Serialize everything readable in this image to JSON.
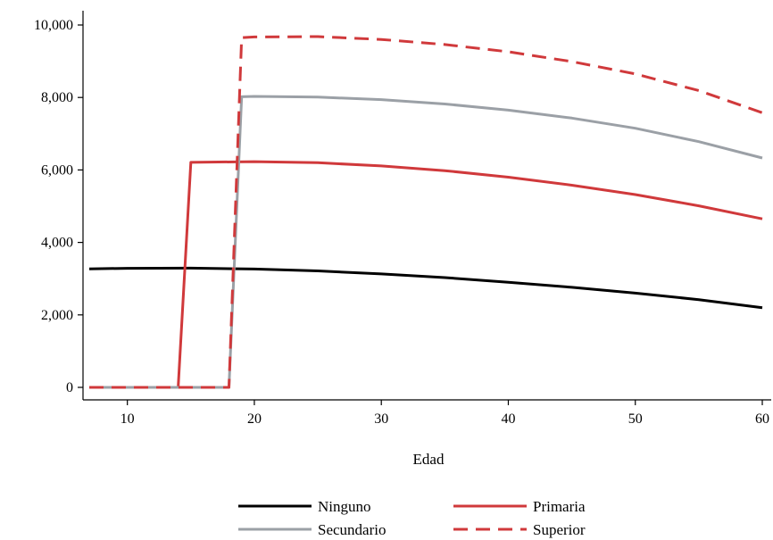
{
  "chart_data": {
    "type": "line",
    "title": "",
    "xlabel": "Edad",
    "ylabel": "",
    "xlim": [
      7,
      60
    ],
    "ylim": [
      0,
      10000
    ],
    "x_ticks": [
      10,
      20,
      30,
      40,
      50,
      60
    ],
    "y_ticks": [
      0,
      2000,
      4000,
      6000,
      8000,
      10000
    ],
    "x_tick_labels": [
      "10",
      "20",
      "30",
      "40",
      "50",
      "60"
    ],
    "y_tick_labels": [
      "0",
      "2,000",
      "4,000",
      "6,000",
      "8,000",
      "10,000"
    ],
    "grid": false,
    "legend_position": "bottom",
    "series": [
      {
        "name": "Ninguno",
        "color": "#000000",
        "dash": "solid",
        "x": [
          7,
          10,
          15,
          20,
          25,
          30,
          35,
          40,
          45,
          50,
          55,
          60
        ],
        "y": [
          3270,
          3285,
          3290,
          3265,
          3215,
          3130,
          3030,
          2900,
          2760,
          2600,
          2420,
          2200
        ]
      },
      {
        "name": "Primaria",
        "color": "#d0393b",
        "dash": "solid",
        "x": [
          7,
          14,
          15,
          20,
          25,
          30,
          35,
          40,
          45,
          50,
          55,
          60
        ],
        "y": [
          0,
          0,
          6210,
          6230,
          6200,
          6110,
          5980,
          5800,
          5580,
          5320,
          5010,
          4650
        ]
      },
      {
        "name": "Secundario",
        "color": "#9ba0a6",
        "dash": "solid",
        "x": [
          7,
          18,
          19,
          20,
          25,
          30,
          35,
          40,
          45,
          50,
          55,
          60
        ],
        "y": [
          0,
          0,
          8020,
          8030,
          8010,
          7940,
          7820,
          7650,
          7430,
          7150,
          6780,
          6330
        ]
      },
      {
        "name": "Superior",
        "color": "#d0393b",
        "dash": "dashed",
        "x": [
          7,
          18,
          19,
          20,
          25,
          30,
          35,
          40,
          45,
          50,
          55,
          60
        ],
        "y": [
          0,
          0,
          9650,
          9670,
          9680,
          9600,
          9460,
          9260,
          8990,
          8650,
          8190,
          7580
        ]
      }
    ]
  }
}
